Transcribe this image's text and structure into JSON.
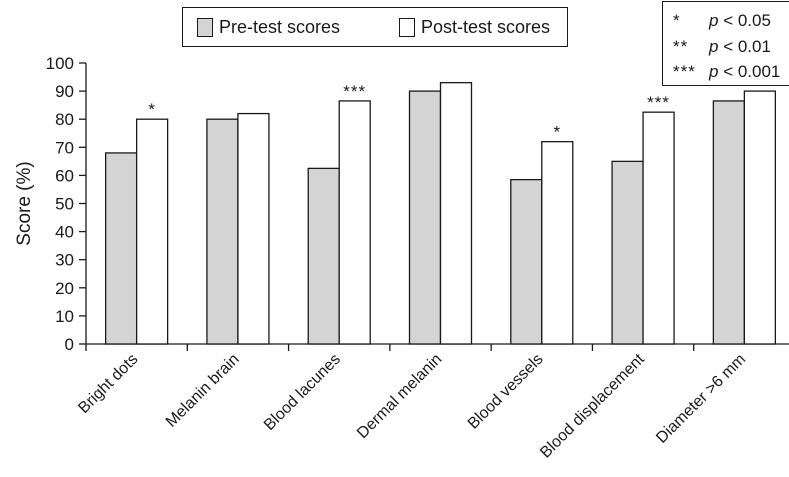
{
  "chart_data": {
    "type": "bar",
    "title": "",
    "xlabel": "",
    "ylabel": "Score (%)",
    "ylim": [
      0,
      100
    ],
    "yticks": [
      0,
      10,
      20,
      30,
      40,
      50,
      60,
      70,
      80,
      90,
      100
    ],
    "categories": [
      "Bright dots",
      "Melanin brain",
      "Blood lacunes",
      "Dermal melanin",
      "Blood vessels",
      "Blood displacement",
      "Diameter >6 mm"
    ],
    "series": [
      {
        "name": "Pre-test scores",
        "color": "#d4d4d4",
        "values": [
          68,
          80,
          62.5,
          90,
          58.5,
          65,
          86.5
        ]
      },
      {
        "name": "Post-test scores",
        "color": "#ffffff",
        "values": [
          80,
          82,
          86.5,
          93,
          72,
          82.5,
          90
        ]
      }
    ],
    "annotations": [
      "*",
      "",
      "***",
      "",
      "*",
      "***",
      ""
    ],
    "legend_position": "top",
    "grid": false
  },
  "significance_legend": [
    {
      "stars": "*",
      "p": "p",
      "text": " < 0.05"
    },
    {
      "stars": "**",
      "p": "p",
      "text": " < 0.01"
    },
    {
      "stars": "***",
      "p": "p",
      "text": " < 0.001"
    }
  ]
}
